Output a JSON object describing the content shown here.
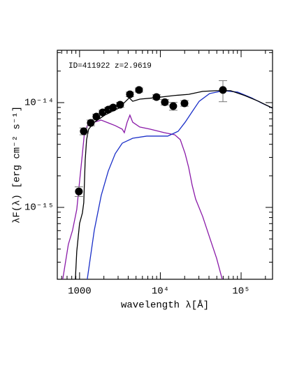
{
  "chart_data": {
    "type": "line",
    "annotation": "ID=411922 z=2.9619",
    "xlabel": "wavelength λ[Å]",
    "ylabel": "λF(λ) [erg cm⁻² s⁻¹]",
    "xscale": "log",
    "yscale": "log",
    "xlim": [
      530,
      245000
    ],
    "ylim": [
      2.06e-16,
      3.16e-14
    ],
    "xticks": [
      1000,
      {
        "value": 10000,
        "label": "10⁴"
      },
      {
        "value": 100000,
        "label": "10⁵"
      }
    ],
    "yticks": [
      {
        "value": 1e-15,
        "label": "10⁻¹⁵"
      },
      {
        "value": 1e-14,
        "label": "10⁻¹⁴"
      }
    ],
    "xminorticks": [
      600,
      700,
      800,
      900,
      2000,
      3000,
      4000,
      5000,
      6000,
      7000,
      8000,
      9000,
      20000,
      30000,
      40000,
      50000,
      60000,
      70000,
      80000,
      90000,
      200000
    ],
    "yminorticks": [
      3e-16,
      4e-16,
      5e-16,
      6e-16,
      7e-16,
      8e-16,
      9e-16,
      2e-15,
      3e-15,
      4e-15,
      5e-15,
      6e-15,
      7e-15,
      8e-15,
      9e-15,
      2e-14,
      3e-14
    ],
    "series": [
      {
        "style": "line",
        "color": "#8a1aa8",
        "x": [
          619,
          726,
          818,
          923,
          1000,
          1084,
          1150,
          1270,
          1520,
          1854,
          2265,
          2765,
          3375,
          3581,
          3880,
          4200,
          4550,
          5555,
          7490,
          11170,
          15040,
          17660,
          20280,
          22440,
          24770,
          27350,
          33420,
          40740,
          49770,
          58350
        ],
        "values": [
          2.06e-16,
          4.43e-16,
          6.03e-16,
          9.55e-16,
          1.77e-15,
          3.26e-15,
          5.17e-15,
          6.21e-15,
          6.5e-15,
          6.81e-15,
          6.41e-15,
          6.03e-15,
          5.58e-15,
          5.17e-15,
          6.5e-15,
          7.59e-15,
          6.5e-15,
          5.85e-15,
          5.58e-15,
          5.17e-15,
          4.94e-15,
          4.43e-15,
          3.26e-15,
          2.4e-15,
          1.63e-15,
          1.2e-15,
          8.19e-16,
          5.17e-16,
          3.26e-16,
          2.06e-16
        ]
      },
      {
        "style": "line",
        "color": "#1a2fc8",
        "x": [
          1245,
          1520,
          1854,
          2265,
          2765,
          3375,
          4550,
          6780,
          12330,
          16630,
          20280,
          24770,
          30270,
          40740,
          60810,
          90560,
          134900,
          181970,
          245500
        ],
        "values": [
          2.06e-16,
          6.03e-16,
          1.3e-15,
          2.22e-15,
          3.26e-15,
          4.1e-15,
          4.57e-15,
          4.79e-15,
          4.79e-15,
          5.33e-15,
          6.5e-15,
          8.19e-15,
          1.03e-14,
          1.22e-14,
          1.3e-14,
          1.26e-14,
          1.11e-14,
          9.85e-15,
          8.85e-15
        ]
      },
      {
        "style": "line",
        "color": "#000000",
        "x": [
          887,
          923,
          1000,
          1084,
          1127,
          1173,
          1221,
          1296,
          1520,
          2050,
          3055,
          3726,
          4120,
          4550,
          5555,
          8280,
          15040,
          22440,
          33420,
          49770,
          74130,
          110400,
          164400,
          245500
        ],
        "values": [
          2.06e-16,
          3.8e-16,
          7.03e-16,
          8.85e-16,
          1.11e-15,
          2.8e-15,
          4.43e-15,
          5.58e-15,
          6.5e-15,
          7.59e-15,
          8.85e-15,
          1.03e-14,
          1.11e-14,
          1.03e-14,
          1.08e-14,
          1.11e-14,
          1.17e-14,
          1.2e-14,
          1.28e-14,
          1.3e-14,
          1.3e-14,
          1.17e-14,
          1.03e-14,
          8.85e-15
        ]
      },
      {
        "style": "points",
        "color": "#000000",
        "x": [
          980,
          1127,
          1376,
          1615,
          1932,
          2266,
          2604,
          3178,
          4200,
          5445,
          8957,
          11370,
          14450,
          19900,
          59560
        ],
        "values": [
          1.42e-15,
          5.33e-15,
          6.41e-15,
          7.36e-15,
          8.07e-15,
          8.58e-15,
          8.98e-15,
          9.55e-15,
          1.2e-14,
          1.32e-14,
          1.13e-14,
          1.01e-14,
          9.26e-15,
          9.85e-15,
          1.32e-14
        ],
        "errors": [
          1.5e-16,
          4e-16,
          4e-16,
          4e-16,
          4e-16,
          4e-16,
          4e-16,
          5e-16,
          6e-16,
          6e-16,
          6e-16,
          6e-16,
          8e-16,
          6e-16,
          3e-15
        ]
      }
    ]
  }
}
